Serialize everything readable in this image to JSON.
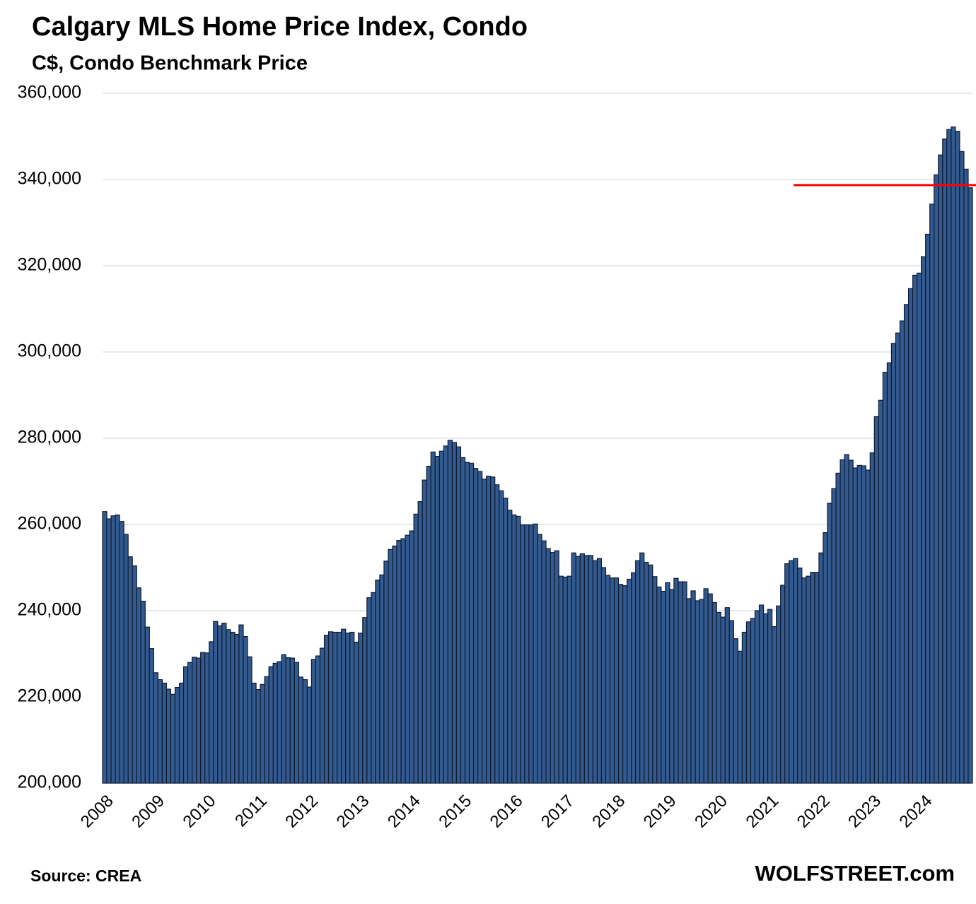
{
  "chart_data": {
    "type": "bar",
    "title": "Calgary MLS Home Price Index, Condo",
    "subtitle": "C$, Condo Benchmark Price",
    "source": "Source: CREA",
    "credit": "WOLFSTREET.com",
    "color": "#335a8f",
    "grid": true,
    "ylim": [
      200000,
      360000
    ],
    "yticks": [
      {
        "value": 200000,
        "label": "200,000"
      },
      {
        "value": 220000,
        "label": "220,000"
      },
      {
        "value": 240000,
        "label": "240,000"
      },
      {
        "value": 260000,
        "label": "260,000"
      },
      {
        "value": 280000,
        "label": "280,000"
      },
      {
        "value": 300000,
        "label": "300,000"
      },
      {
        "value": 320000,
        "label": "320,000"
      },
      {
        "value": 340000,
        "label": "340,000"
      },
      {
        "value": 360000,
        "label": "360,000"
      }
    ],
    "reference_line": {
      "value": 338700,
      "color": "#ff0000"
    },
    "categories": [
      "2008",
      null,
      null,
      null,
      null,
      null,
      null,
      null,
      null,
      null,
      null,
      null,
      "2009",
      null,
      null,
      null,
      null,
      null,
      null,
      null,
      null,
      null,
      null,
      null,
      "2010",
      null,
      null,
      null,
      null,
      null,
      null,
      null,
      null,
      null,
      null,
      null,
      "2011",
      null,
      null,
      null,
      null,
      null,
      null,
      null,
      null,
      null,
      null,
      null,
      "2012",
      null,
      null,
      null,
      null,
      null,
      null,
      null,
      null,
      null,
      null,
      null,
      "2013",
      null,
      null,
      null,
      null,
      null,
      null,
      null,
      null,
      null,
      null,
      null,
      "2014",
      null,
      null,
      null,
      null,
      null,
      null,
      null,
      null,
      null,
      null,
      null,
      "2015",
      null,
      null,
      null,
      null,
      null,
      null,
      null,
      null,
      null,
      null,
      null,
      "2016",
      null,
      null,
      null,
      null,
      null,
      null,
      null,
      null,
      null,
      null,
      null,
      "2017",
      null,
      null,
      null,
      null,
      null,
      null,
      null,
      null,
      null,
      null,
      null,
      "2018",
      null,
      null,
      null,
      null,
      null,
      null,
      null,
      null,
      null,
      null,
      null,
      "2019",
      null,
      null,
      null,
      null,
      null,
      null,
      null,
      null,
      null,
      null,
      null,
      "2020",
      null,
      null,
      null,
      null,
      null,
      null,
      null,
      null,
      null,
      null,
      null,
      "2021",
      null,
      null,
      null,
      null,
      null,
      null,
      null,
      null,
      null,
      null,
      null,
      "2022",
      null,
      null,
      null,
      null,
      null,
      null,
      null,
      null,
      null,
      null,
      null,
      "2023",
      null,
      null,
      null,
      null,
      null,
      null,
      null,
      null,
      null,
      null,
      null,
      "2024",
      null,
      null,
      null,
      null,
      null,
      null,
      null,
      null,
      null,
      null,
      null
    ],
    "values": [
      263000,
      261300,
      262000,
      262200,
      260700,
      257700,
      252500,
      250400,
      245300,
      242200,
      236200,
      231200,
      225600,
      224000,
      223200,
      221800,
      220600,
      222200,
      223200,
      227000,
      228000,
      229200,
      229000,
      230300,
      230200,
      232800,
      237500,
      236500,
      237100,
      235600,
      235000,
      234500,
      236700,
      234000,
      229300,
      223200,
      221700,
      222900,
      224700,
      227000,
      227800,
      228200,
      229800,
      229100,
      229000,
      228000,
      224600,
      224000,
      222300,
      228700,
      229500,
      231300,
      234300,
      235100,
      235000,
      235000,
      235700,
      234800,
      235000,
      232700,
      234800,
      238400,
      243000,
      244200,
      247100,
      248300,
      251500,
      254200,
      255000,
      256300,
      256700,
      257500,
      258500,
      262400,
      265300,
      270300,
      273500,
      276800,
      275800,
      277000,
      278200,
      279500,
      279000,
      278000,
      275500,
      274400,
      274200,
      273000,
      272300,
      270500,
      271200,
      271000,
      269200,
      267800,
      266100,
      263300,
      262200,
      261900,
      259900,
      259900,
      259900,
      260100,
      257700,
      256200,
      254400,
      253500,
      253900,
      248000,
      247800,
      248000,
      253400,
      252600,
      253200,
      252800,
      252800,
      251600,
      252100,
      250000,
      248200,
      247600,
      247600,
      246100,
      245800,
      247300,
      248800,
      251600,
      253400,
      251200,
      250600,
      247900,
      245500,
      244500,
      246500,
      244900,
      247500,
      246700,
      246700,
      242800,
      244600,
      242300,
      242600,
      245100,
      243900,
      241900,
      239600,
      238500,
      240700,
      237700,
      233500,
      230600,
      235000,
      237400,
      238200,
      240000,
      241300,
      239300,
      240300,
      236300,
      241100,
      245900,
      250900,
      251600,
      252100,
      249900,
      247600,
      248000,
      248900,
      248900,
      253400,
      258100,
      264900,
      268300,
      271900,
      275000,
      276200,
      274900,
      273100,
      273700,
      273600,
      272600,
      276600,
      285000,
      288800,
      295300,
      297500,
      302000,
      304400,
      307200,
      311000,
      314700,
      317800,
      318300,
      322100,
      327300,
      334300,
      341100,
      345700,
      349400,
      351600,
      352200,
      351200,
      346500,
      342400,
      338100
    ]
  }
}
